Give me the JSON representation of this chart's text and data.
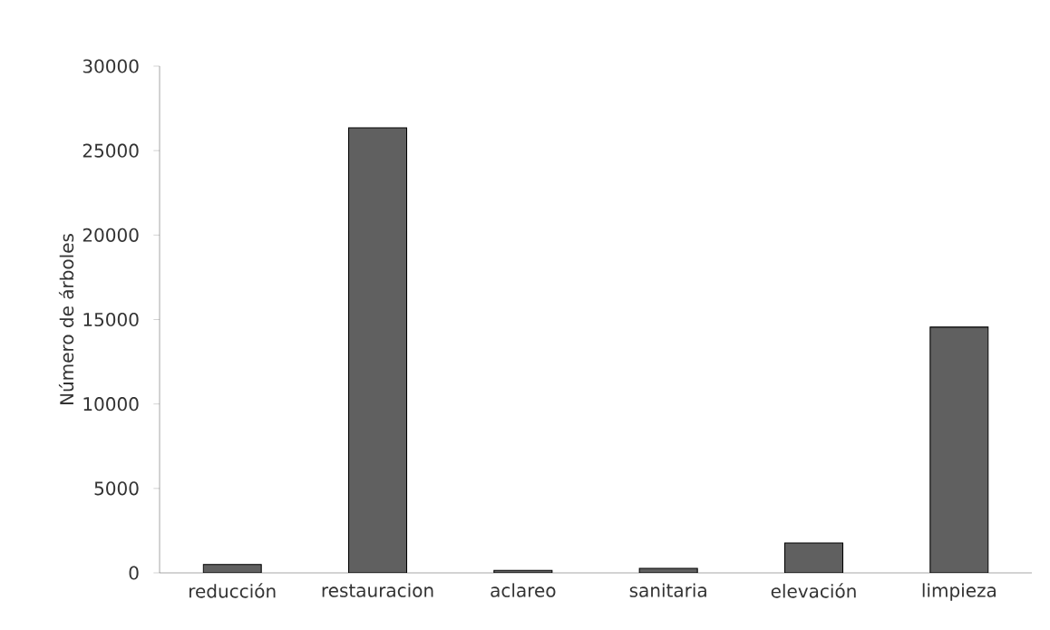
{
  "chart_data": {
    "type": "bar",
    "ylabel": "Número de árboles",
    "categories": [
      "reducción",
      "restauracion",
      "aclareo",
      "sanitaria",
      "elevación",
      "limpieza"
    ],
    "values": [
      500,
      26350,
      150,
      270,
      1770,
      14550
    ],
    "color": "#606060",
    "ylim": [
      0,
      30000
    ],
    "yticks": [
      0,
      5000,
      10000,
      15000,
      20000,
      25000,
      30000
    ],
    "grid": false
  }
}
